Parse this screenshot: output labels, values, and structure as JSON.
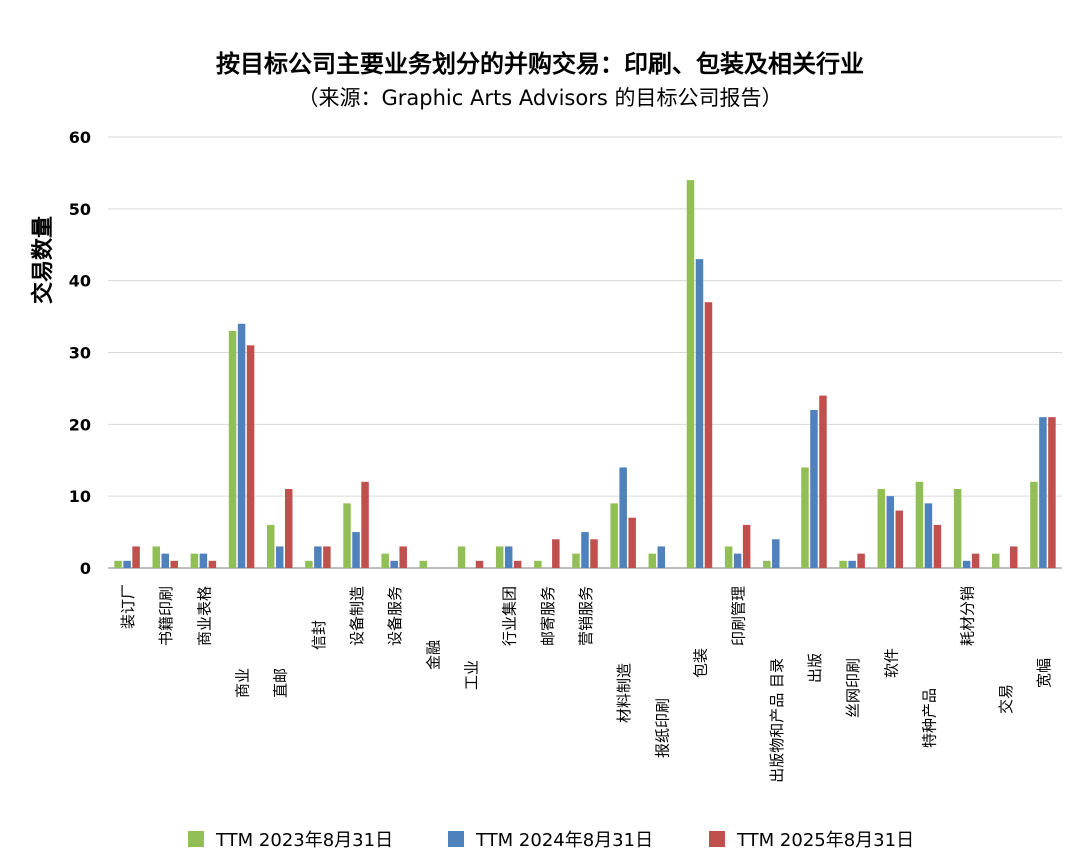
{
  "chart_data": {
    "type": "bar",
    "title": "按目标公司主要业务划分的并购交易：印刷、包装及相关行业",
    "subtitle": "（来源：Graphic Arts Advisors 的目标公司报告）",
    "xlabel": "",
    "ylabel": "交易数量",
    "ylim": [
      0,
      60
    ],
    "yticks": [
      "0",
      "10",
      "20",
      "30",
      "40",
      "50",
      "60"
    ],
    "grid": true,
    "legend_position": "bottom",
    "categories": [
      "装订厂",
      "书籍印刷",
      "商业表格",
      "商业",
      "直邮",
      "信封",
      "设备制造",
      "设备服务",
      "金融",
      "工业",
      "行业集团",
      "邮寄服务",
      "营销服务",
      "材料制造",
      "报纸印刷",
      "包装",
      "印刷管理",
      "出版物和产品 目录",
      "出版",
      "丝网印刷",
      "软件",
      "特种产品",
      "耗材分销",
      "交易",
      "宽幅"
    ],
    "series": [
      {
        "name": "TTM 2023年8月31日",
        "color": "#92BF55",
        "values": [
          1,
          3,
          2,
          33,
          6,
          1,
          9,
          2,
          1,
          3,
          3,
          1,
          2,
          9,
          2,
          54,
          3,
          1,
          14,
          1,
          11,
          12,
          11,
          2,
          12
        ]
      },
      {
        "name": "TTM 2024年8月31日",
        "color": "#4F81BD",
        "values": [
          1,
          2,
          2,
          34,
          3,
          3,
          5,
          1,
          0,
          0,
          3,
          0,
          5,
          14,
          3,
          43,
          2,
          4,
          22,
          1,
          10,
          9,
          1,
          0,
          21
        ]
      },
      {
        "name": "TTM 2025年8月31日",
        "color": "#C0504D",
        "values": [
          3,
          1,
          1,
          31,
          11,
          3,
          12,
          3,
          0,
          1,
          1,
          4,
          4,
          7,
          0,
          37,
          6,
          0,
          24,
          2,
          8,
          6,
          2,
          3,
          21
        ]
      }
    ]
  }
}
